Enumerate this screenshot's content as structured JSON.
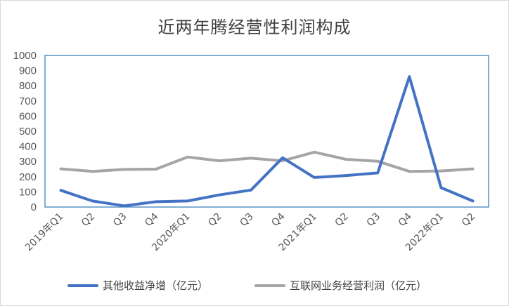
{
  "chart_data": {
    "type": "line",
    "title": "近两年腾经营性利润构成",
    "categories": [
      "2019年Q1",
      "Q2",
      "Q3",
      "Q4",
      "2020年Q1",
      "Q2",
      "Q3",
      "Q4",
      "2021年Q1",
      "Q2",
      "Q3",
      "Q4",
      "2022年Q1",
      "Q2"
    ],
    "ylim": [
      0,
      1000
    ],
    "yticks": [
      0,
      100,
      200,
      300,
      400,
      500,
      600,
      700,
      800,
      900,
      1000
    ],
    "grid": false,
    "legend_position": "bottom",
    "series": [
      {
        "name": "其他收益净增（亿元）",
        "color": "#4472c4",
        "values": [
          110,
          40,
          8,
          35,
          40,
          80,
          112,
          325,
          195,
          208,
          225,
          860,
          128,
          40
        ]
      },
      {
        "name": "互联网业务经营利润（亿元）",
        "color": "#a5a5a5",
        "values": [
          252,
          235,
          248,
          250,
          330,
          305,
          322,
          305,
          362,
          315,
          302,
          235,
          238,
          252
        ]
      }
    ]
  }
}
